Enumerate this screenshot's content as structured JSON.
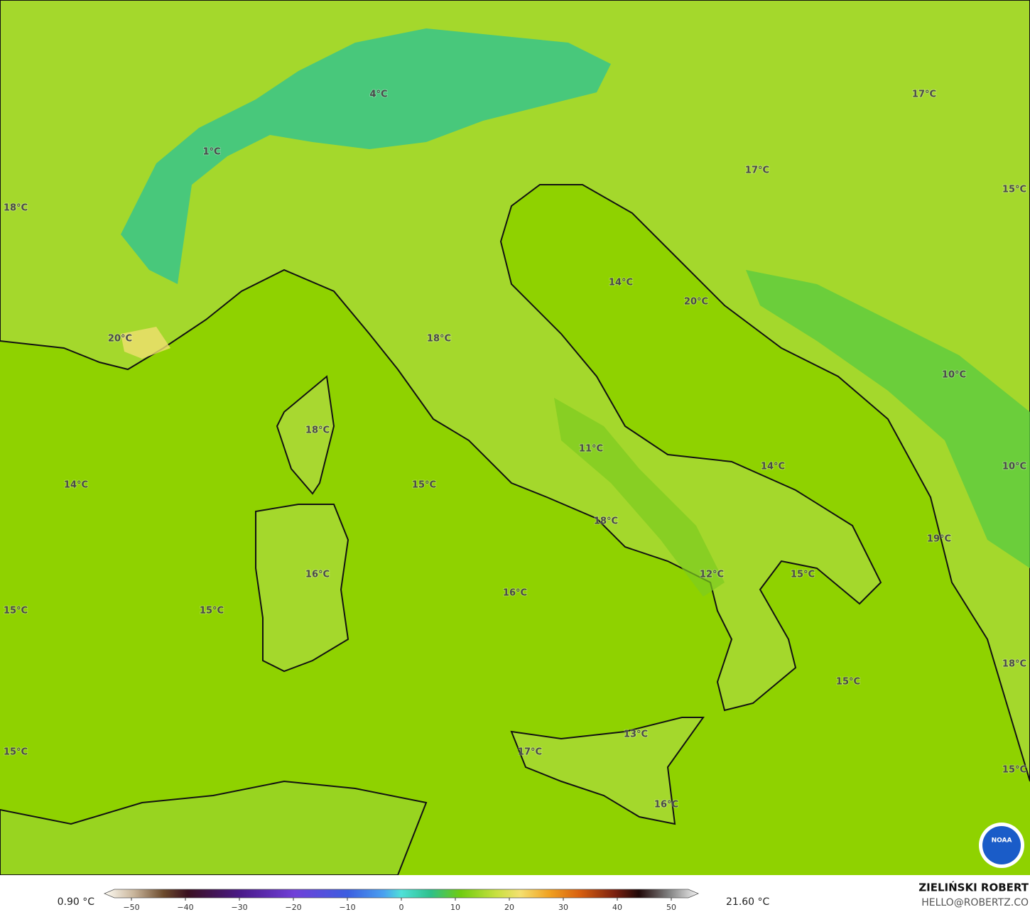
{
  "map": {
    "labels": [
      "4°C",
      "1°C",
      "17°C",
      "17°C",
      "15°C",
      "18°C",
      "14°C",
      "20°C",
      "20°C",
      "18°C",
      "10°C",
      "18°C",
      "11°C",
      "14°C",
      "15°C",
      "14°C",
      "10°C",
      "18°C",
      "19°C",
      "16°C",
      "12°C",
      "15°C",
      "16°C",
      "15°C",
      "15°C",
      "18°C",
      "15°C",
      "13°C",
      "17°C",
      "15°C",
      "15°C",
      "16°C"
    ]
  },
  "colorbar": {
    "min_label": "0.90 °C",
    "max_label": "21.60 °C",
    "lim": [
      -55,
      55
    ],
    "ticks": [
      {
        "value": -50,
        "label": "−50"
      },
      {
        "value": -40,
        "label": "−40"
      },
      {
        "value": -30,
        "label": "−30"
      },
      {
        "value": -20,
        "label": "−20"
      },
      {
        "value": -10,
        "label": "−10"
      },
      0,
      10,
      20,
      30,
      40,
      50
    ]
  },
  "credit": {
    "name": "ZIELIŃSKI ROBERT",
    "email": "HELLO@ROBERTZ.CO"
  },
  "logo": "NOAA"
}
